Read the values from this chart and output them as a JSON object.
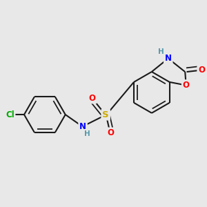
{
  "bg_color": "#e8e8e8",
  "bond_color": "#1a1a1a",
  "bond_width": 1.5,
  "dbo": 0.05,
  "atom_colors": {
    "N": "#0000ff",
    "O": "#ff0000",
    "S": "#ccaa00",
    "Cl": "#00aa00",
    "H_color": "#5599aa"
  },
  "font_size": 8.5,
  "fig_width": 3.0,
  "fig_height": 3.0,
  "dpi": 100,
  "xlim": [
    -0.5,
    5.8
  ],
  "ylim": [
    -2.0,
    2.2
  ]
}
